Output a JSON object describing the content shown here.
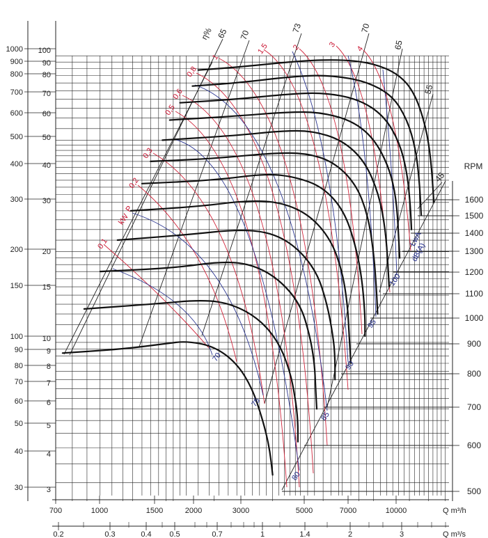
{
  "chart_data": {
    "type": "line",
    "x_axis_top": {
      "label": "Q m³/h",
      "ticks": [
        "700",
        "1000",
        "1500",
        "2000",
        "3000",
        "5000",
        "7000",
        "10000"
      ]
    },
    "x_axis_bottom": {
      "label": "Q m³/s",
      "ticks": [
        "0.2",
        "0.3",
        "0.4",
        "0.5",
        "0.7",
        "1",
        "1.4",
        "2",
        "3"
      ]
    },
    "y_left_pa": {
      "ticks": [
        "1000",
        "900",
        "800",
        "700",
        "600",
        "500",
        "400",
        "300",
        "200",
        "150",
        "100",
        "90",
        "80",
        "70",
        "60",
        "50",
        "40",
        "30"
      ]
    },
    "y_left_mm": {
      "ticks": [
        "100",
        "90",
        "80",
        "70",
        "60",
        "50",
        "40",
        "30",
        "20",
        "15",
        "10",
        "9",
        "8",
        "7",
        "6",
        "5",
        "4",
        "3"
      ]
    },
    "y_right_rpm": {
      "title": "RPM",
      "ticks": [
        "1600",
        "1500",
        "1400",
        "1300",
        "1200",
        "1100",
        "1000",
        "900",
        "800",
        "700",
        "600",
        "500"
      ]
    },
    "efficiency": {
      "label": "η%",
      "values": [
        "65",
        "70",
        "73",
        "70",
        "65",
        "55",
        "45"
      ]
    },
    "power": {
      "label_p": "P",
      "label_kw": "kW",
      "values": [
        "1",
        "1,5",
        "2",
        "3",
        "4",
        "0,8",
        "0,6",
        "0,5",
        "0,3",
        "0,2",
        "0,1"
      ]
    },
    "sound": {
      "label_lwa": "LwA",
      "label_db": "dB(A)",
      "values": [
        "100",
        "95",
        "90",
        "85",
        "80",
        "75",
        "70"
      ]
    },
    "series": [
      {
        "rpm": 1600,
        "points": [
          [
            2200,
            89
          ],
          [
            3000,
            91
          ],
          [
            5000,
            96
          ],
          [
            7000,
            97
          ],
          [
            9000,
            94
          ],
          [
            11000,
            86
          ],
          [
            12500,
            74
          ],
          [
            13700,
            56
          ],
          [
            14300,
            42
          ],
          [
            14600,
            30
          ]
        ]
      },
      {
        "rpm": 1500,
        "points": [
          [
            2100,
            78
          ],
          [
            3000,
            80
          ],
          [
            5000,
            85
          ],
          [
            6500,
            85
          ],
          [
            8500,
            81
          ],
          [
            10500,
            72
          ],
          [
            11800,
            59
          ],
          [
            12600,
            47
          ],
          [
            13000,
            36
          ],
          [
            13200,
            27
          ]
        ]
      },
      {
        "rpm": 1400,
        "points": [
          [
            1900,
            68
          ],
          [
            3000,
            70
          ],
          [
            4500,
            73
          ],
          [
            6000,
            74
          ],
          [
            8000,
            70
          ],
          [
            9800,
            61
          ],
          [
            11100,
            49
          ],
          [
            11800,
            38
          ],
          [
            12100,
            29
          ],
          [
            12200,
            24
          ]
        ]
      },
      {
        "rpm": 1300,
        "points": [
          [
            1750,
            59
          ],
          [
            3000,
            61
          ],
          [
            4500,
            63
          ],
          [
            5800,
            63
          ],
          [
            7500,
            59
          ],
          [
            9000,
            51
          ],
          [
            10200,
            40
          ],
          [
            10800,
            31
          ],
          [
            11000,
            23
          ],
          [
            11100,
            19
          ]
        ]
      },
      {
        "rpm": 1200,
        "points": [
          [
            1650,
            50
          ],
          [
            3000,
            52
          ],
          [
            4300,
            54
          ],
          [
            5500,
            54
          ],
          [
            7000,
            50
          ],
          [
            8400,
            42
          ],
          [
            9400,
            32
          ],
          [
            9900,
            24
          ],
          [
            10100,
            18
          ],
          [
            10200,
            15
          ]
        ]
      },
      {
        "rpm": 1100,
        "points": [
          [
            1500,
            42
          ],
          [
            2500,
            43
          ],
          [
            4000,
            45
          ],
          [
            5200,
            45
          ],
          [
            6500,
            42
          ],
          [
            7800,
            35
          ],
          [
            8600,
            27
          ],
          [
            9000,
            20
          ],
          [
            9200,
            15
          ],
          [
            9300,
            12
          ]
        ]
      },
      {
        "rpm": 1000,
        "points": [
          [
            1400,
            35
          ],
          [
            2500,
            36
          ],
          [
            3800,
            38
          ],
          [
            4800,
            37
          ],
          [
            6000,
            34
          ],
          [
            7100,
            28
          ],
          [
            7800,
            21
          ],
          [
            8200,
            16
          ],
          [
            8400,
            12
          ],
          [
            8400,
            10
          ]
        ]
      },
      {
        "rpm": 900,
        "points": [
          [
            1280,
            28
          ],
          [
            2200,
            29
          ],
          [
            3300,
            30.5
          ],
          [
            4300,
            30
          ],
          [
            5400,
            27
          ],
          [
            6400,
            22
          ],
          [
            7000,
            17
          ],
          [
            7300,
            13
          ],
          [
            7400,
            10
          ],
          [
            7500,
            8
          ]
        ]
      },
      {
        "rpm": 800,
        "points": [
          [
            1150,
            22
          ],
          [
            2000,
            23
          ],
          [
            3000,
            24
          ],
          [
            3900,
            23.5
          ],
          [
            4800,
            21
          ],
          [
            5700,
            17
          ],
          [
            6200,
            13
          ],
          [
            6500,
            10
          ],
          [
            6600,
            8.5
          ],
          [
            6600,
            7
          ]
        ]
      },
      {
        "rpm": 700,
        "points": [
          [
            1000,
            17
          ],
          [
            1800,
            17.5
          ],
          [
            2700,
            18.5
          ],
          [
            3400,
            18
          ],
          [
            4200,
            16
          ],
          [
            5000,
            13
          ],
          [
            5400,
            10
          ],
          [
            5600,
            8
          ],
          [
            5650,
            6.5
          ],
          [
            5700,
            5.5
          ]
        ]
      },
      {
        "rpm": 600,
        "points": [
          [
            880,
            12.5
          ],
          [
            1500,
            13
          ],
          [
            2300,
            13.5
          ],
          [
            2900,
            13
          ],
          [
            3600,
            11.5
          ],
          [
            4200,
            9.5
          ],
          [
            4600,
            7.5
          ],
          [
            4800,
            6
          ],
          [
            4900,
            5
          ],
          [
            4900,
            4.2
          ]
        ]
      },
      {
        "rpm": 500,
        "points": [
          [
            740,
            8.7
          ],
          [
            1200,
            9
          ],
          [
            1700,
            9.4
          ],
          [
            2000,
            9.6
          ],
          [
            2500,
            9.2
          ],
          [
            3000,
            8
          ],
          [
            3400,
            6.5
          ],
          [
            3700,
            5
          ],
          [
            3900,
            4
          ],
          [
            4000,
            3.2
          ]
        ]
      }
    ]
  }
}
